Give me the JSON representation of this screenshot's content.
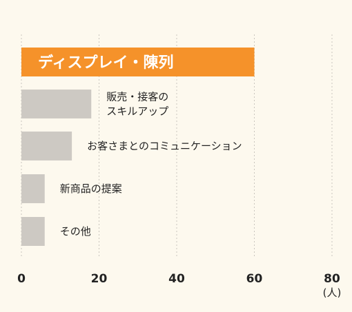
{
  "chart_data": {
    "type": "bar",
    "orientation": "horizontal",
    "categories": [
      "ディスプレイ・陳列",
      "販売・接客の\nスキルアップ",
      "お客さまとのコミュニケーション",
      "新商品の提案",
      "その他"
    ],
    "values": [
      60,
      18,
      13,
      6,
      6
    ],
    "xlim": [
      0,
      80
    ],
    "x_ticks": [
      0,
      20,
      40,
      60,
      80
    ],
    "x_unit": "(人)",
    "grid": "vertical-dotted",
    "highlight_index": 0
  },
  "colors": {
    "background": "#fdf9ee",
    "highlight_bar": "#f5922a",
    "bar": "#cdc9c3",
    "grid": "#c9c5bd",
    "axis_text": "#222222"
  }
}
